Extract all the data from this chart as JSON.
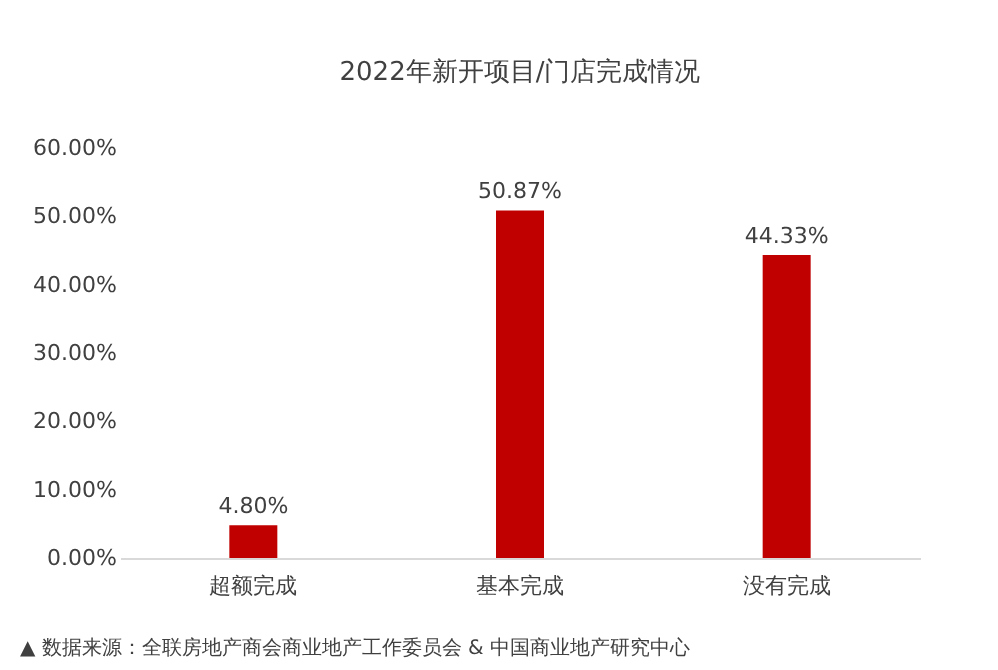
{
  "chart_data": {
    "type": "bar",
    "title": "2022年新开项目/门店完成情况",
    "categories": [
      "超额完成",
      "基本完成",
      "没有完成"
    ],
    "values": [
      4.8,
      50.87,
      44.33
    ],
    "value_labels": [
      "4.80%",
      "50.87%",
      "44.33%"
    ],
    "color": "#c00000",
    "ylim": [
      0,
      60
    ],
    "yticks": [
      {
        "value": 0,
        "label": "0.00%"
      },
      {
        "value": 10,
        "label": "10.00%"
      },
      {
        "value": 20,
        "label": "20.00%"
      },
      {
        "value": 30,
        "label": "30.00%"
      },
      {
        "value": 40,
        "label": "40.00%"
      },
      {
        "value": 50,
        "label": "50.00%"
      },
      {
        "value": 60,
        "label": "60.00%"
      }
    ],
    "grid": false,
    "annotations": [
      "▲ 数据来源：全联房地产商会商业地产工作委员会 & 中国商业地产研究中心"
    ]
  }
}
